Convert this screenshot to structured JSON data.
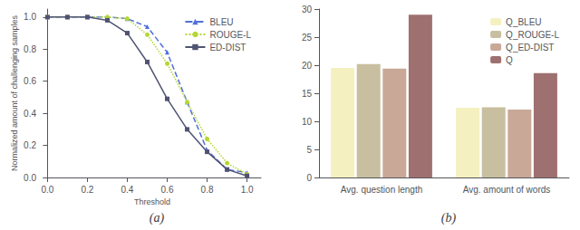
{
  "chart_data": [
    {
      "type": "line",
      "title": "(a)",
      "xlabel": "Threshold",
      "ylabel": "Normalized amount of challenging samples",
      "x": [
        0.0,
        0.1,
        0.2,
        0.3,
        0.4,
        0.5,
        0.6,
        0.7,
        0.8,
        0.9,
        1.0
      ],
      "series": [
        {
          "name": "BLEU",
          "marker": "triangle",
          "line_style": "dashed",
          "values": [
            1.0,
            1.0,
            1.0,
            1.0,
            0.99,
            0.94,
            0.78,
            0.47,
            0.17,
            0.05,
            0.03
          ]
        },
        {
          "name": "ROUGE-L",
          "marker": "circle",
          "line_style": "dotted",
          "values": [
            1.0,
            1.0,
            1.0,
            1.0,
            0.99,
            0.89,
            0.71,
            0.47,
            0.24,
            0.09,
            0.02
          ]
        },
        {
          "name": "ED-DIST",
          "marker": "square",
          "line_style": "solid",
          "values": [
            1.0,
            1.0,
            1.0,
            0.98,
            0.9,
            0.72,
            0.49,
            0.3,
            0.16,
            0.05,
            0.01
          ]
        }
      ],
      "xlim": [
        -0.02,
        1.07
      ],
      "xticks": [
        {
          "value": 0.0,
          "label": "0.0"
        },
        0.2,
        0.4,
        0.6,
        0.8,
        {
          "value": 1.0,
          "label": "1.0"
        }
      ],
      "ylim": [
        0.0,
        1.05
      ],
      "yticks": [
        {
          "value": 0.0,
          "label": "0.0"
        },
        0.2,
        0.4,
        0.6,
        0.8,
        {
          "value": 1.0,
          "label": "1.0"
        }
      ],
      "legend": "upper right",
      "grid": false
    },
    {
      "type": "bar",
      "title": "(b)",
      "categories": [
        "Avg. question length",
        "Avg. amount of words"
      ],
      "series": [
        {
          "name": "Q_BLEU",
          "color": "#f5f0c0",
          "values": [
            19.5,
            12.4
          ]
        },
        {
          "name": "Q_ROUGE-L",
          "color": "#c8bfa0",
          "values": [
            20.2,
            12.5
          ]
        },
        {
          "name": "Q_ED-DIST",
          "color": "#c9a898",
          "values": [
            19.4,
            12.1
          ]
        },
        {
          "name": "Q",
          "color": "#9e7070",
          "values": [
            29.0,
            18.6
          ]
        }
      ],
      "ylim": [
        0,
        30
      ],
      "yticks": [
        0,
        5,
        10,
        15,
        20,
        25,
        30
      ],
      "legend": "upper right",
      "grid": false
    }
  ]
}
